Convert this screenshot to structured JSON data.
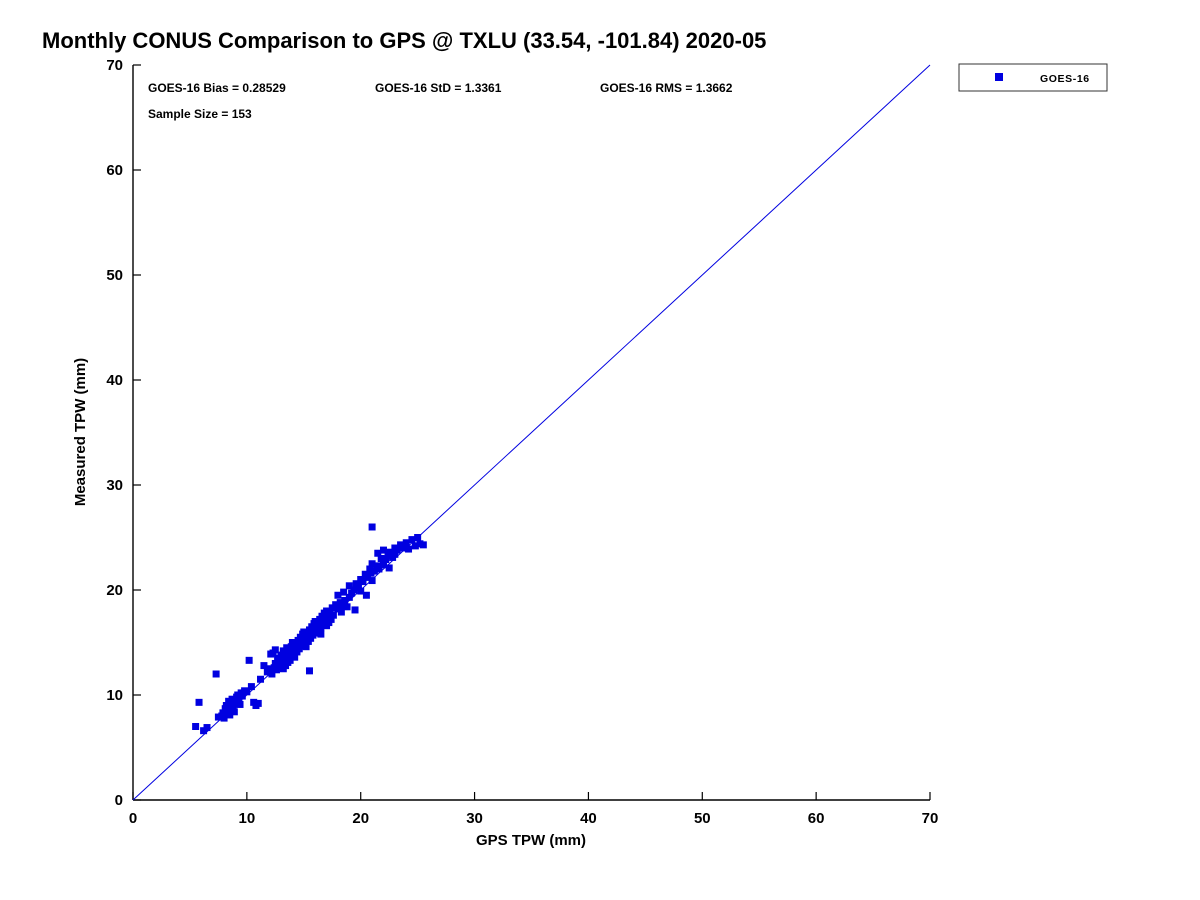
{
  "chart_data": {
    "type": "scatter",
    "title": "Monthly CONUS Comparison to GPS @ TXLU (33.54, -101.84) 2020-05",
    "xlabel": "GPS TPW (mm)",
    "ylabel": "Measured TPW (mm)",
    "xlim": [
      0,
      70
    ],
    "ylim": [
      0,
      70
    ],
    "xticks": [
      0,
      10,
      20,
      30,
      40,
      50,
      60,
      70
    ],
    "yticks": [
      0,
      10,
      20,
      30,
      40,
      50,
      60,
      70
    ],
    "grid": false,
    "legend_position": "top-right-outside",
    "annotations": {
      "bias_label": "GOES-16 Bias = 0.28529",
      "std_label": "GOES-16 StD = 1.3361",
      "rms_label": "GOES-16 RMS = 1.3662",
      "sample_label": "Sample Size = 153"
    },
    "stats": {
      "bias": 0.28529,
      "std": 1.3361,
      "rms": 1.3662,
      "sample_size": 153
    },
    "colors": {
      "series": "#0000E0",
      "axis": "#000000",
      "legend_border": "#333333"
    },
    "reference_line": {
      "from": [
        0,
        0
      ],
      "to": [
        70,
        70
      ],
      "color": "#0000E0",
      "width": 1
    },
    "legend": {
      "entries": [
        {
          "label": "GOES-16",
          "marker": "square",
          "color": "#0000E0"
        }
      ]
    },
    "series": [
      {
        "name": "GOES-16",
        "marker": "square",
        "color": "#0000E0",
        "points": [
          [
            5.5,
            7.0
          ],
          [
            5.8,
            9.3
          ],
          [
            6.2,
            6.6
          ],
          [
            6.5,
            6.9
          ],
          [
            7.3,
            12.0
          ],
          [
            7.5,
            7.9
          ],
          [
            7.8,
            8.0
          ],
          [
            7.9,
            8.3
          ],
          [
            8.0,
            7.8
          ],
          [
            8.1,
            8.7
          ],
          [
            8.2,
            9.0
          ],
          [
            8.3,
            8.5
          ],
          [
            8.4,
            9.4
          ],
          [
            8.5,
            8.1
          ],
          [
            8.6,
            9.0
          ],
          [
            8.7,
            9.6
          ],
          [
            8.8,
            8.8
          ],
          [
            8.9,
            8.4
          ],
          [
            9.0,
            9.2
          ],
          [
            9.1,
            9.8
          ],
          [
            9.2,
            10.0
          ],
          [
            9.3,
            9.5
          ],
          [
            9.4,
            9.1
          ],
          [
            9.5,
            10.2
          ],
          [
            9.6,
            9.9
          ],
          [
            9.8,
            10.4
          ],
          [
            10.0,
            10.3
          ],
          [
            10.2,
            13.3
          ],
          [
            10.4,
            10.8
          ],
          [
            10.6,
            9.3
          ],
          [
            10.8,
            9.0
          ],
          [
            11.0,
            9.2
          ],
          [
            11.2,
            11.5
          ],
          [
            11.5,
            12.8
          ],
          [
            11.8,
            12.2
          ],
          [
            12.0,
            12.5
          ],
          [
            12.1,
            13.9
          ],
          [
            12.2,
            12.0
          ],
          [
            12.3,
            14.0
          ],
          [
            12.4,
            12.6
          ],
          [
            12.5,
            13.0
          ],
          [
            12.5,
            14.3
          ],
          [
            12.6,
            12.4
          ],
          [
            12.7,
            13.5
          ],
          [
            12.8,
            12.9
          ],
          [
            12.9,
            13.2
          ],
          [
            13.0,
            12.7
          ],
          [
            13.0,
            13.8
          ],
          [
            13.1,
            13.0
          ],
          [
            13.2,
            14.2
          ],
          [
            13.2,
            12.5
          ],
          [
            13.3,
            13.4
          ],
          [
            13.4,
            12.8
          ],
          [
            13.5,
            13.6
          ],
          [
            13.5,
            14.5
          ],
          [
            13.6,
            13.1
          ],
          [
            13.7,
            14.0
          ],
          [
            13.8,
            13.3
          ],
          [
            13.9,
            14.6
          ],
          [
            14.0,
            13.9
          ],
          [
            14.0,
            15.0
          ],
          [
            14.1,
            14.3
          ],
          [
            14.2,
            13.6
          ],
          [
            14.3,
            14.8
          ],
          [
            14.4,
            14.1
          ],
          [
            14.5,
            15.2
          ],
          [
            14.6,
            14.4
          ],
          [
            14.7,
            15.5
          ],
          [
            14.8,
            14.7
          ],
          [
            14.9,
            15.8
          ],
          [
            15.0,
            14.9
          ],
          [
            15.0,
            16.0
          ],
          [
            15.1,
            15.3
          ],
          [
            15.2,
            14.6
          ],
          [
            15.3,
            15.9
          ],
          [
            15.4,
            15.1
          ],
          [
            15.5,
            16.2
          ],
          [
            15.5,
            12.3
          ],
          [
            15.6,
            15.4
          ],
          [
            15.7,
            16.5
          ],
          [
            15.8,
            15.7
          ],
          [
            15.9,
            16.8
          ],
          [
            16.0,
            16.1
          ],
          [
            16.0,
            17.0
          ],
          [
            16.1,
            15.9
          ],
          [
            16.2,
            16.6
          ],
          [
            16.3,
            16.2
          ],
          [
            16.4,
            17.2
          ],
          [
            16.5,
            16.4
          ],
          [
            16.5,
            15.8
          ],
          [
            16.6,
            17.5
          ],
          [
            16.7,
            16.8
          ],
          [
            16.8,
            17.8
          ],
          [
            16.9,
            17.0
          ],
          [
            17.0,
            16.6
          ],
          [
            17.0,
            18.0
          ],
          [
            17.1,
            17.3
          ],
          [
            17.2,
            16.9
          ],
          [
            17.3,
            17.9
          ],
          [
            17.4,
            17.2
          ],
          [
            17.5,
            18.3
          ],
          [
            17.6,
            17.6
          ],
          [
            17.8,
            18.6
          ],
          [
            18.0,
            18.2
          ],
          [
            18.0,
            19.5
          ],
          [
            18.2,
            18.8
          ],
          [
            18.3,
            17.9
          ],
          [
            18.4,
            18.5
          ],
          [
            18.5,
            19.8
          ],
          [
            18.6,
            19.0
          ],
          [
            18.8,
            18.4
          ],
          [
            19.0,
            19.3
          ],
          [
            19.0,
            20.4
          ],
          [
            19.2,
            19.7
          ],
          [
            19.4,
            20.0
          ],
          [
            19.5,
            18.1
          ],
          [
            19.6,
            20.6
          ],
          [
            19.8,
            20.2
          ],
          [
            20.0,
            19.9
          ],
          [
            20.0,
            21.0
          ],
          [
            20.2,
            20.8
          ],
          [
            20.4,
            21.5
          ],
          [
            20.5,
            19.5
          ],
          [
            20.6,
            21.2
          ],
          [
            20.8,
            22.0
          ],
          [
            20.9,
            21.6
          ],
          [
            21.0,
            20.9
          ],
          [
            21.0,
            22.5
          ],
          [
            21.0,
            26.0
          ],
          [
            21.2,
            21.8
          ],
          [
            21.4,
            22.3
          ],
          [
            21.5,
            23.5
          ],
          [
            21.6,
            22.0
          ],
          [
            21.8,
            23.0
          ],
          [
            22.0,
            22.4
          ],
          [
            22.0,
            23.8
          ],
          [
            22.2,
            22.9
          ],
          [
            22.4,
            23.3
          ],
          [
            22.5,
            22.1
          ],
          [
            22.6,
            23.6
          ],
          [
            22.8,
            23.1
          ],
          [
            23.0,
            23.4
          ],
          [
            23.0,
            24.0
          ],
          [
            23.2,
            23.8
          ],
          [
            23.5,
            24.3
          ],
          [
            23.8,
            24.0
          ],
          [
            24.0,
            24.5
          ],
          [
            24.2,
            23.9
          ],
          [
            24.5,
            24.8
          ],
          [
            24.8,
            24.2
          ],
          [
            25.0,
            25.0
          ],
          [
            25.2,
            24.4
          ],
          [
            25.5,
            24.3
          ]
        ]
      }
    ]
  }
}
